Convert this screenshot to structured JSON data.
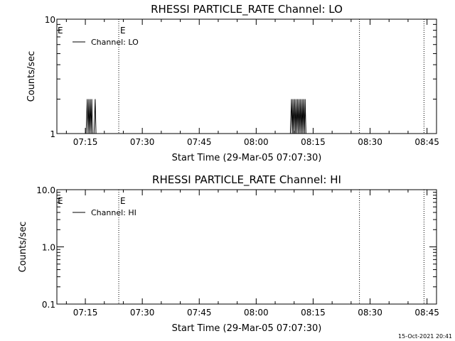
{
  "chart_data": [
    {
      "type": "line",
      "title": "RHESSI PARTICLE_RATE Channel: LO",
      "xlabel": "Start Time (29-Mar-05 07:07:30)",
      "ylabel": "Counts/sec",
      "yscale": "log",
      "ylim": [
        1,
        10
      ],
      "yticks": [
        {
          "value": 1,
          "label": "1"
        },
        {
          "value": 10,
          "label": "10"
        }
      ],
      "xlim_minutes_after_0700": [
        7.5,
        107.5
      ],
      "xticks": [
        {
          "minute": 15,
          "label": "07:15"
        },
        {
          "minute": 30,
          "label": "07:30"
        },
        {
          "minute": 45,
          "label": "07:45"
        },
        {
          "minute": 60,
          "label": "08:00"
        },
        {
          "minute": 75,
          "label": "08:15"
        },
        {
          "minute": 90,
          "label": "08:30"
        },
        {
          "minute": 105,
          "label": "08:45"
        }
      ],
      "legend": {
        "position": "top-left",
        "label": "Channel: LO"
      },
      "event_markers": [
        {
          "minute": 23.8,
          "label": "E"
        },
        {
          "minute": 87.2,
          "label": ""
        },
        {
          "minute": 104.2,
          "label": ""
        }
      ],
      "series": [
        {
          "values": [
            [
              14.0,
              1
            ],
            [
              15.2,
              1
            ],
            [
              15.5,
              2
            ],
            [
              15.7,
              1
            ],
            [
              15.9,
              2
            ],
            [
              16.1,
              1
            ],
            [
              16.3,
              2
            ],
            [
              16.5,
              1
            ],
            [
              16.7,
              2
            ],
            [
              16.9,
              1
            ],
            [
              17.3,
              1
            ],
            [
              17.6,
              2
            ],
            [
              17.8,
              1
            ],
            [
              18.2,
              1
            ],
            [
              69.0,
              1
            ],
            [
              69.3,
              2
            ],
            [
              69.5,
              1
            ],
            [
              69.7,
              2
            ],
            [
              69.9,
              1
            ],
            [
              70.1,
              2
            ],
            [
              70.3,
              1
            ],
            [
              70.5,
              2
            ],
            [
              70.7,
              1
            ],
            [
              70.9,
              2
            ],
            [
              71.1,
              1
            ],
            [
              71.3,
              2
            ],
            [
              71.5,
              1
            ],
            [
              71.7,
              2
            ],
            [
              71.9,
              1
            ],
            [
              72.1,
              2
            ],
            [
              72.3,
              1
            ],
            [
              72.5,
              2
            ],
            [
              72.7,
              1
            ],
            [
              72.9,
              2
            ],
            [
              73.1,
              1
            ],
            [
              73.6,
              1
            ]
          ]
        }
      ]
    },
    {
      "type": "line",
      "title": "RHESSI PARTICLE_RATE Channel: HI",
      "xlabel": "Start Time (29-Mar-05 07:07:30)",
      "ylabel": "Counts/sec",
      "yscale": "log",
      "ylim": [
        0.1,
        10
      ],
      "yticks": [
        {
          "value": 0.1,
          "label": "0.1"
        },
        {
          "value": 1,
          "label": "1.0"
        },
        {
          "value": 10,
          "label": "10.0"
        }
      ],
      "xlim_minutes_after_0700": [
        7.5,
        107.5
      ],
      "xticks": [
        {
          "minute": 15,
          "label": "07:15"
        },
        {
          "minute": 30,
          "label": "07:30"
        },
        {
          "minute": 45,
          "label": "07:45"
        },
        {
          "minute": 60,
          "label": "08:00"
        },
        {
          "minute": 75,
          "label": "08:15"
        },
        {
          "minute": 90,
          "label": "08:30"
        },
        {
          "minute": 105,
          "label": "08:45"
        }
      ],
      "legend": {
        "position": "top-left",
        "label": "Channel: HI"
      },
      "event_markers": [
        {
          "minute": 23.8,
          "label": "E"
        },
        {
          "minute": 87.2,
          "label": ""
        },
        {
          "minute": 104.2,
          "label": ""
        }
      ],
      "series": [
        {
          "values": []
        }
      ]
    }
  ],
  "footer": {
    "timestamp": "15-Oct-2021 20:41"
  }
}
